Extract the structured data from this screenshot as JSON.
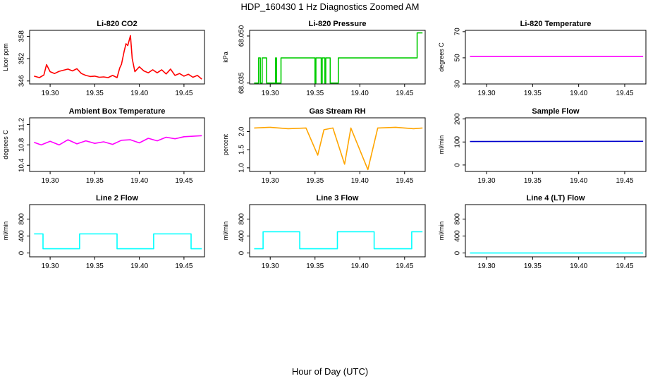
{
  "figure": {
    "title": "HDP_160430  1 Hz Diagnostics Zoomed AM",
    "xlabel": "Hour of Day (UTC)"
  },
  "chart_data": [
    {
      "type": "line",
      "title": "Li-820 CO2",
      "ylabel": "Licor ppm",
      "color": "#ff0000",
      "xlim": [
        19.277,
        19.473
      ],
      "ylim": [
        345.2,
        359.6
      ],
      "xticks": [
        "19.30",
        "19.35",
        "19.40",
        "19.45"
      ],
      "yticks": [
        "346",
        "352",
        "358"
      ],
      "ytick_values": [
        346,
        352,
        358
      ],
      "series": [
        {
          "name": "CO2",
          "x": [
            19.282,
            19.288,
            19.293,
            19.296,
            19.3,
            19.305,
            19.31,
            19.315,
            19.32,
            19.325,
            19.33,
            19.335,
            19.34,
            19.345,
            19.35,
            19.355,
            19.36,
            19.365,
            19.37,
            19.375,
            19.378,
            19.38,
            19.383,
            19.385,
            19.387,
            19.39,
            19.392,
            19.395,
            19.4,
            19.405,
            19.41,
            19.415,
            19.42,
            19.425,
            19.43,
            19.435,
            19.44,
            19.445,
            19.45,
            19.455,
            19.46,
            19.465,
            19.47
          ],
          "y": [
            347.3,
            346.9,
            347.6,
            350.4,
            348.5,
            348.0,
            348.6,
            348.9,
            349.2,
            348.7,
            349.3,
            348.0,
            347.5,
            347.2,
            347.3,
            347.0,
            347.1,
            346.9,
            347.5,
            346.9,
            349.5,
            350.5,
            354.0,
            356.0,
            355.5,
            358.2,
            352.0,
            348.5,
            349.8,
            348.7,
            348.2,
            349.0,
            348.2,
            349.0,
            347.9,
            349.2,
            347.5,
            348.0,
            347.3,
            347.8,
            347.0,
            347.5,
            346.5
          ]
        }
      ]
    },
    {
      "type": "line",
      "title": "Li-820 Pressure",
      "ylabel": "kPa",
      "color": "#00cc00",
      "xlim": [
        19.277,
        19.473
      ],
      "ylim": [
        68.0347,
        68.0518
      ],
      "xticks": [
        "19.30",
        "19.35",
        "19.40",
        "19.45"
      ],
      "yticks": [
        "68.035",
        "68.050"
      ],
      "ytick_values": [
        68.035,
        68.05
      ],
      "series": [
        {
          "name": "Pressure",
          "x": [
            19.282,
            19.287,
            19.287,
            19.289,
            19.289,
            19.291,
            19.291,
            19.296,
            19.296,
            19.306,
            19.306,
            19.307,
            19.307,
            19.312,
            19.312,
            19.313,
            19.313,
            19.35,
            19.35,
            19.351,
            19.351,
            19.357,
            19.357,
            19.358,
            19.358,
            19.361,
            19.361,
            19.362,
            19.362,
            19.367,
            19.367,
            19.376,
            19.376,
            19.464,
            19.464,
            19.47
          ],
          "y": [
            68.035,
            68.035,
            68.043,
            68.043,
            68.035,
            68.035,
            68.043,
            68.043,
            68.035,
            68.035,
            68.043,
            68.043,
            68.035,
            68.035,
            68.043,
            68.043,
            68.043,
            68.043,
            68.035,
            68.035,
            68.043,
            68.043,
            68.035,
            68.035,
            68.043,
            68.043,
            68.035,
            68.035,
            68.043,
            68.043,
            68.035,
            68.035,
            68.043,
            68.043,
            68.051,
            68.051
          ]
        }
      ]
    },
    {
      "type": "line",
      "title": "Li-820 Temperature",
      "ylabel": "degrees C",
      "color": "#ff00ff",
      "xlim": [
        19.277,
        19.473
      ],
      "ylim": [
        30,
        71
      ],
      "xticks": [
        "19.30",
        "19.35",
        "19.40",
        "19.45"
      ],
      "yticks": [
        "30",
        "50",
        "70"
      ],
      "ytick_values": [
        30,
        50,
        70
      ],
      "series": [
        {
          "name": "Temperature",
          "x": [
            19.282,
            19.47
          ],
          "y": [
            51,
            51
          ]
        }
      ]
    },
    {
      "type": "line",
      "title": "Ambient Box Temperature",
      "ylabel": "degrees C",
      "color": "#ff00ff",
      "xlim": [
        19.277,
        19.473
      ],
      "ylim": [
        10.28,
        11.33
      ],
      "xticks": [
        "19.30",
        "19.35",
        "19.40",
        "19.45"
      ],
      "yticks": [
        "10.4",
        "10.8",
        "11.2"
      ],
      "ytick_values": [
        10.4,
        10.8,
        11.2
      ],
      "series": [
        {
          "name": "Ambient Box Temperature",
          "x": [
            19.282,
            19.29,
            19.3,
            19.31,
            19.32,
            19.33,
            19.34,
            19.35,
            19.36,
            19.37,
            19.38,
            19.39,
            19.4,
            19.41,
            19.42,
            19.43,
            19.44,
            19.45,
            19.46,
            19.47
          ],
          "y": [
            10.85,
            10.8,
            10.87,
            10.8,
            10.9,
            10.82,
            10.88,
            10.83,
            10.86,
            10.81,
            10.89,
            10.9,
            10.84,
            10.93,
            10.88,
            10.95,
            10.92,
            10.96,
            10.97,
            10.98
          ]
        }
      ]
    },
    {
      "type": "line",
      "title": "Gas Stream RH",
      "ylabel": "percent",
      "color": "#ffa500",
      "xlim": [
        19.277,
        19.473
      ],
      "ylim": [
        0.9,
        2.38
      ],
      "xticks": [
        "19.30",
        "19.35",
        "19.40",
        "19.45"
      ],
      "yticks": [
        "1.0",
        "1.5",
        "2.0"
      ],
      "ytick_values": [
        1.0,
        1.5,
        2.0
      ],
      "series": [
        {
          "name": "Gas Stream RH",
          "x": [
            19.282,
            19.3,
            19.32,
            19.34,
            19.353,
            19.36,
            19.37,
            19.383,
            19.39,
            19.409,
            19.42,
            19.44,
            19.46,
            19.47
          ],
          "y": [
            2.1,
            2.12,
            2.08,
            2.1,
            1.35,
            2.05,
            2.1,
            1.1,
            2.1,
            0.95,
            2.1,
            2.12,
            2.08,
            2.1
          ]
        }
      ]
    },
    {
      "type": "line",
      "title": "Sample Flow",
      "ylabel": "ml/min",
      "color": "#0000cc",
      "xlim": [
        19.277,
        19.473
      ],
      "ylim": [
        -28,
        205
      ],
      "xticks": [
        "19.30",
        "19.35",
        "19.40",
        "19.45"
      ],
      "yticks": [
        "0",
        "100",
        "200"
      ],
      "ytick_values": [
        0,
        100,
        200
      ],
      "series": [
        {
          "name": "Sample Flow",
          "x": [
            19.282,
            19.47
          ],
          "y": [
            102,
            103
          ]
        }
      ]
    },
    {
      "type": "line",
      "title": "Line 2 Flow",
      "ylabel": "ml/min",
      "color": "#00ffff",
      "xlim": [
        19.277,
        19.473
      ],
      "ylim": [
        -90,
        1140
      ],
      "xticks": [
        "19.30",
        "19.35",
        "19.40",
        "19.45"
      ],
      "yticks": [
        "0",
        "400",
        "800"
      ],
      "ytick_values": [
        0,
        400,
        800
      ],
      "series": [
        {
          "name": "Line 2 Flow",
          "x": [
            19.282,
            19.292,
            19.292,
            19.333,
            19.333,
            19.375,
            19.375,
            19.416,
            19.416,
            19.458,
            19.458,
            19.47
          ],
          "y": [
            450,
            450,
            100,
            100,
            450,
            450,
            100,
            100,
            450,
            450,
            100,
            100
          ]
        }
      ]
    },
    {
      "type": "line",
      "title": "Line 3 Flow",
      "ylabel": "ml/min",
      "color": "#00ffff",
      "xlim": [
        19.277,
        19.473
      ],
      "ylim": [
        -90,
        1140
      ],
      "xticks": [
        "19.30",
        "19.35",
        "19.40",
        "19.45"
      ],
      "yticks": [
        "0",
        "400",
        "800"
      ],
      "ytick_values": [
        0,
        400,
        800
      ],
      "series": [
        {
          "name": "Line 3 Flow",
          "x": [
            19.282,
            19.292,
            19.292,
            19.333,
            19.333,
            19.375,
            19.375,
            19.416,
            19.416,
            19.458,
            19.458,
            19.47
          ],
          "y": [
            100,
            100,
            500,
            500,
            100,
            100,
            500,
            500,
            100,
            100,
            500,
            500
          ]
        }
      ]
    },
    {
      "type": "line",
      "title": "Line 4 (LT) Flow",
      "ylabel": "ml/min",
      "color": "#00ffff",
      "xlim": [
        19.277,
        19.473
      ],
      "ylim": [
        -90,
        1140
      ],
      "xticks": [
        "19.30",
        "19.35",
        "19.40",
        "19.45"
      ],
      "yticks": [
        "0",
        "400",
        "800"
      ],
      "ytick_values": [
        0,
        400,
        800
      ],
      "series": [
        {
          "name": "Line 4 (LT) Flow",
          "x": [
            19.282,
            19.47
          ],
          "y": [
            0,
            0
          ]
        }
      ]
    }
  ]
}
